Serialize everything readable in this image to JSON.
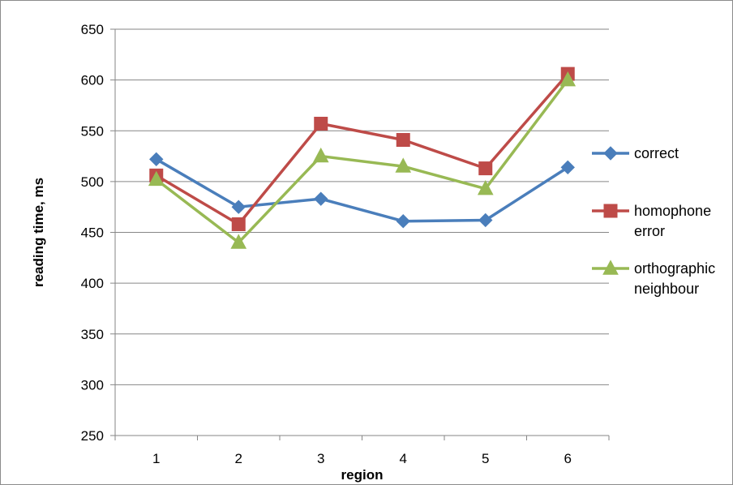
{
  "chart_data": {
    "type": "line",
    "title": "",
    "xlabel": "region",
    "ylabel": "reading time, ms",
    "x": [
      1,
      2,
      3,
      4,
      5,
      6
    ],
    "ylim": [
      250,
      650
    ],
    "yticks": [
      250,
      300,
      350,
      400,
      450,
      500,
      550,
      600,
      650
    ],
    "grid": true,
    "legend_position": "right",
    "series": [
      {
        "name": "correct",
        "legend_lines": [
          "correct"
        ],
        "color": "#4a7ebb",
        "marker": "diamond",
        "values": [
          522,
          475,
          483,
          461,
          462,
          514
        ]
      },
      {
        "name": "homophone error",
        "legend_lines": [
          "homophone",
          "error"
        ],
        "color": "#be4b48",
        "marker": "square",
        "values": [
          506,
          458,
          557,
          541,
          513,
          606
        ]
      },
      {
        "name": "orthographic neighbour",
        "legend_lines": [
          "orthographic",
          "neighbour"
        ],
        "color": "#98b954",
        "marker": "triangle",
        "values": [
          502,
          440,
          525,
          515,
          493,
          600
        ]
      }
    ]
  }
}
